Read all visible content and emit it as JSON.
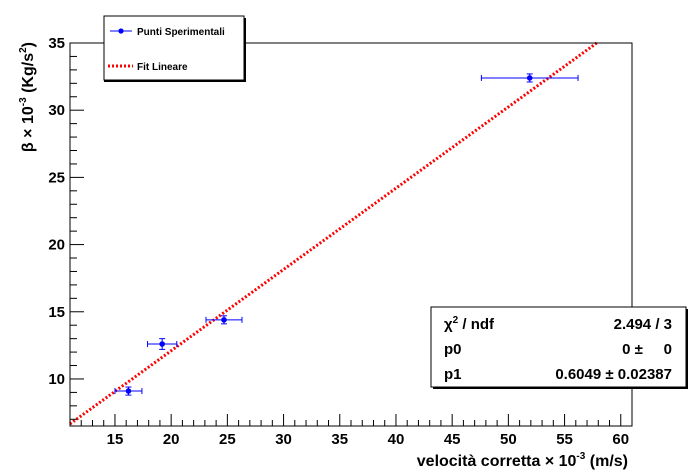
{
  "chart_data": {
    "type": "scatter",
    "xlabel": {
      "main": "velocità corretta ",
      "times": "× 10",
      "exp": "-3",
      "unit": " (m/s)"
    },
    "ylabel": {
      "main": "β ",
      "times": "× 10",
      "exp": "-3",
      "unit_pre": " (Kg/s",
      "unit_exp": "2",
      "unit_post": ")"
    },
    "xlim": [
      11,
      61
    ],
    "ylim": [
      6.5,
      35
    ],
    "xticks": [
      15,
      20,
      25,
      30,
      35,
      40,
      45,
      50,
      55,
      60
    ],
    "yticks": [
      10,
      15,
      20,
      25,
      30,
      35
    ],
    "grid": false,
    "series": [
      {
        "name": "Punti Sperimentali",
        "kind": "points",
        "color": "#0000ff",
        "points": [
          {
            "x": 16.2,
            "y": 9.1,
            "xerr": 1.2,
            "yerr": 0.3
          },
          {
            "x": 19.2,
            "y": 12.6,
            "xerr": 1.3,
            "yerr": 0.4
          },
          {
            "x": 24.7,
            "y": 14.4,
            "xerr": 1.6,
            "yerr": 0.3
          },
          {
            "x": 51.9,
            "y": 32.4,
            "xerr": 4.3,
            "yerr": 0.3
          }
        ]
      },
      {
        "name": "Fit Lineare",
        "kind": "line",
        "style": "dotted",
        "color": "#ff0000",
        "p0": 0,
        "p1": 0.6049,
        "x_range": [
          11,
          58
        ]
      }
    ],
    "legend": {
      "position": "top-left",
      "entries": [
        {
          "label": "Punti Sperimentali",
          "marker": "errorbar-point",
          "color": "#0000ff"
        },
        {
          "label": "Fit Lineare",
          "marker": "dotted-line",
          "color": "#ff0000"
        }
      ]
    },
    "stats_box": {
      "position": "bottom-right",
      "rows": [
        {
          "name_pre": "χ",
          "name_exp": "2",
          "name_post": " / ndf",
          "value": "2.494 / 3"
        },
        {
          "name_pre": "p0",
          "name_exp": "",
          "name_post": "",
          "value": "0 ±     0"
        },
        {
          "name_pre": "p1",
          "name_exp": "",
          "name_post": "",
          "value": "0.6049 ± 0.02387"
        }
      ]
    }
  }
}
